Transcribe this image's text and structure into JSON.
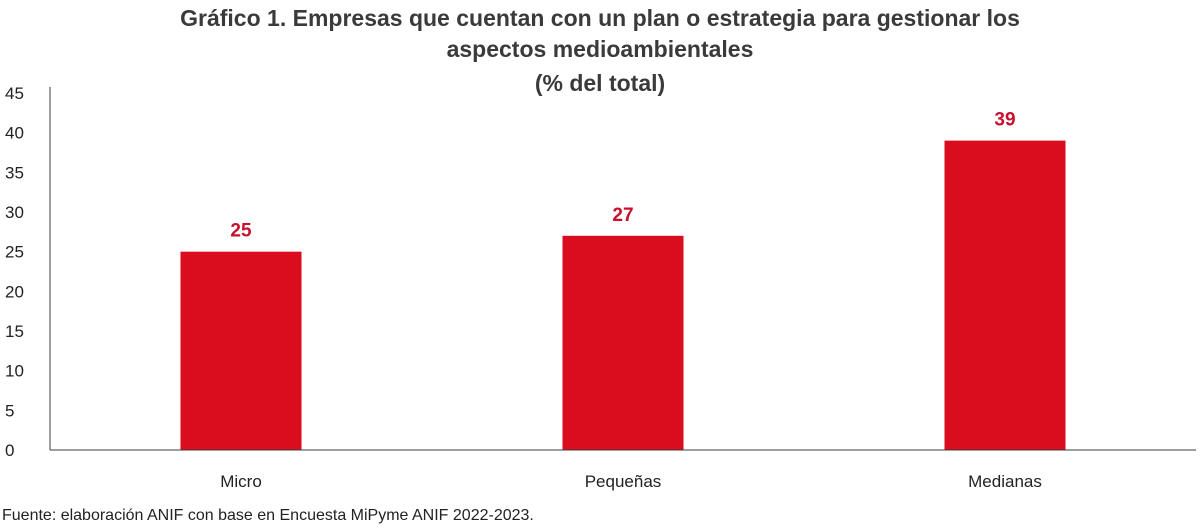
{
  "chart_data": {
    "type": "bar",
    "title_lines": [
      "Gráfico 1. Empresas que cuentan con un plan o estrategia para gestionar los",
      "aspectos medioambientales",
      "(% del total)"
    ],
    "categories": [
      "Micro",
      "Pequeñas",
      "Medianas"
    ],
    "values": [
      25,
      27,
      39
    ],
    "data_labels": [
      "25",
      "27",
      "39"
    ],
    "y_ticks": [
      "0",
      "5",
      "10",
      "15",
      "20",
      "25",
      "30",
      "35",
      "40",
      "45"
    ],
    "ylim": [
      0,
      45
    ],
    "xlabel": "",
    "ylabel": "",
    "grid": false,
    "legend": "none",
    "bar_color": "#d90d1e",
    "label_color": "#c8102e"
  },
  "source_note": "Fuente: elaboración ANIF con base en Encuesta MiPyme ANIF 2022-2023."
}
